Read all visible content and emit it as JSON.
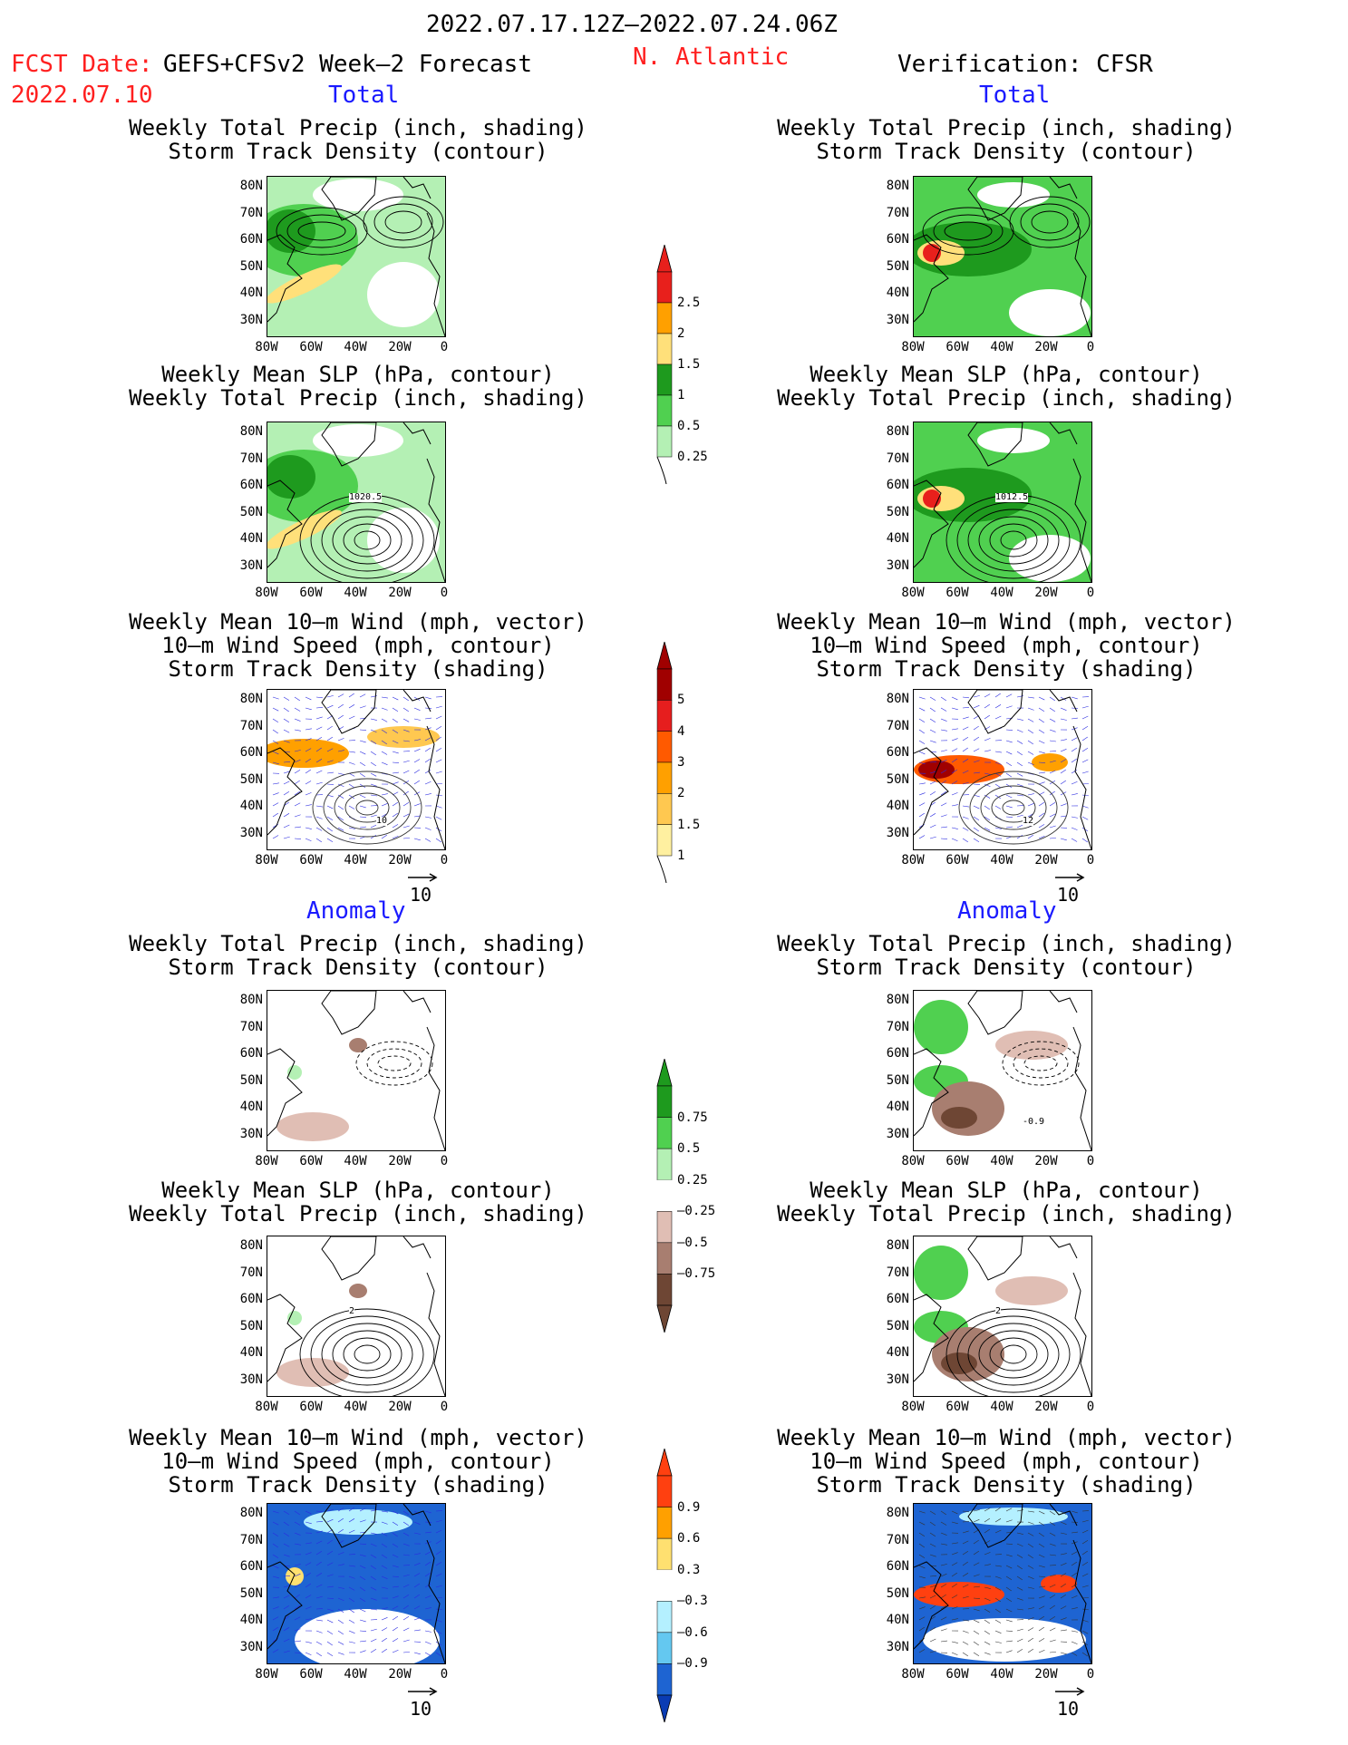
{
  "header": {
    "date_range": "2022.07.17.12Z–2022.07.24.06Z",
    "fcst_date_label": "FCST Date:",
    "fcst_date_value": "2022.07.10",
    "model": "GEFS+CFSv2 Week–2 Forecast",
    "region": "N. Atlantic",
    "verification": "Verification: CFSR"
  },
  "sections": {
    "total": "Total",
    "anomaly": "Anomaly"
  },
  "titles": {
    "precip_track": "Weekly Total Precip (inch, shading)\nStorm Track Density (contour)",
    "slp_precip": "Weekly Mean SLP (hPa, contour)\nWeekly Total Precip (inch, shading)",
    "wind_track": "Weekly Mean 10–m Wind (mph, vector)\n10–m Wind Speed (mph, contour)\nStorm Track Density (shading)"
  },
  "axes": {
    "lat_ticks": [
      "80N",
      "70N",
      "60N",
      "50N",
      "40N",
      "30N"
    ],
    "lon_ticks": [
      "80W",
      "60W",
      "40W",
      "20W",
      "0"
    ]
  },
  "contour_labels": {
    "slp_fcst": "1020.5",
    "slp_verif": "1012.5",
    "anom_precip_verif": "-0.9",
    "anom_slp_fcst": "2",
    "anom_slp_verif": "2",
    "wind_fcst": "10",
    "wind_verif": "12"
  },
  "vector_ref": "10",
  "colorbars": {
    "precip_total": [
      "2.5",
      "2",
      "1.5",
      "1",
      "0.5",
      "0.25"
    ],
    "track_total": [
      "5",
      "4",
      "3",
      "2",
      "1.5",
      "1"
    ],
    "precip_anom": [
      "0.75",
      "0.5",
      "0.25",
      "–0.25",
      "–0.5",
      "–0.75"
    ],
    "track_anom": [
      "0.9",
      "0.6",
      "0.3",
      "–0.3",
      "–0.6",
      "–0.9"
    ]
  },
  "colors": {
    "precip_total": [
      "#e8201c",
      "#ffa000",
      "#ffe07a",
      "#1e9a1e",
      "#50d050",
      "#b4f0b4"
    ],
    "track_total": [
      "#a00000",
      "#e61e1e",
      "#ff5a00",
      "#ffa000",
      "#ffc850",
      "#fff0a0"
    ],
    "precip_anom": [
      "#1e9a1e",
      "#50d050",
      "#b4f0b4",
      "#e0beb4",
      "#a87e70",
      "#6e4634"
    ],
    "track_anom": [
      "#ff4010",
      "#ffa000",
      "#ffe070",
      "#b4f0ff",
      "#64c8f0",
      "#1e64d2",
      "#0a3cb4"
    ]
  }
}
